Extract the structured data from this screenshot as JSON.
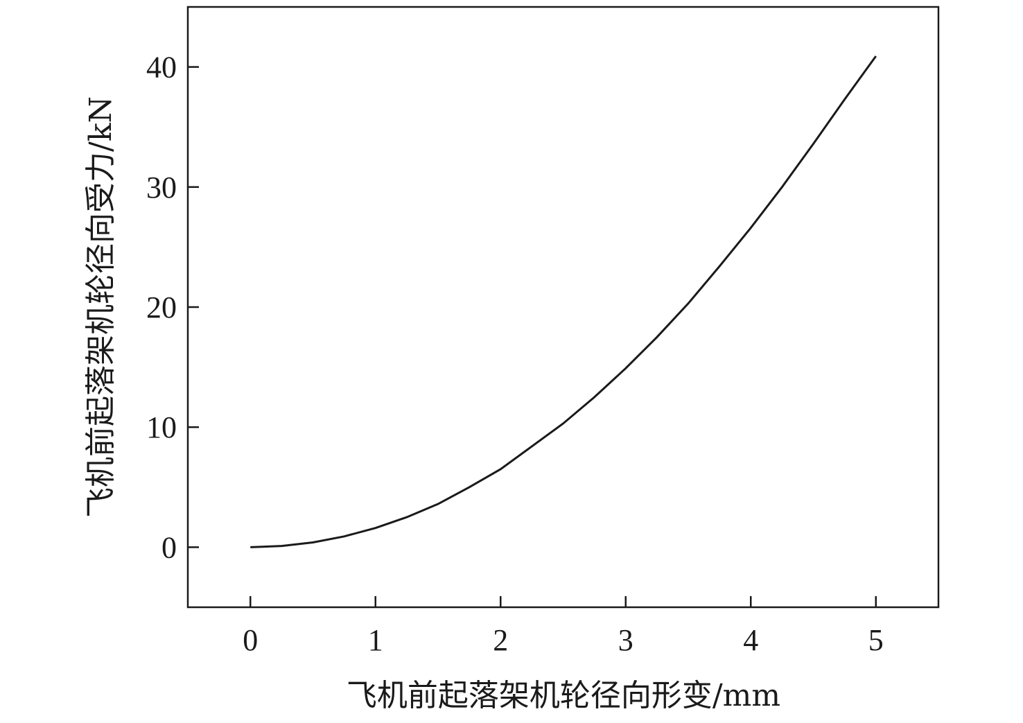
{
  "chart_data": {
    "type": "line",
    "title": "",
    "xlabel": "飞机前起落架机轮径向形变/mm",
    "ylabel": "飞机前起落架机轮径向受力/kN",
    "xlim": [
      -0.5,
      5.5
    ],
    "ylim": [
      -5,
      45
    ],
    "xticks": [
      0,
      1,
      2,
      3,
      4,
      5
    ],
    "yticks": [
      0,
      10,
      20,
      30,
      40
    ],
    "xtick_labels": [
      "0",
      "1",
      "2",
      "3",
      "4",
      "5"
    ],
    "ytick_labels": [
      "0",
      "10",
      "20",
      "30",
      "40"
    ],
    "grid": false,
    "legend": "none",
    "line_color": "#1a1a1a",
    "series": [
      {
        "x": [
          0,
          0.25,
          0.5,
          0.75,
          1.0,
          1.25,
          1.5,
          1.75,
          2.0,
          2.25,
          2.5,
          2.75,
          3.0,
          3.25,
          3.5,
          3.75,
          4.0,
          4.25,
          4.5,
          4.75,
          5.0
        ],
        "values": [
          0,
          0.1,
          0.4,
          0.9,
          1.6,
          2.5,
          3.6,
          5.0,
          6.5,
          8.4,
          10.3,
          12.5,
          14.9,
          17.5,
          20.3,
          23.4,
          26.6,
          30.0,
          33.6,
          37.3,
          40.9
        ]
      }
    ]
  }
}
